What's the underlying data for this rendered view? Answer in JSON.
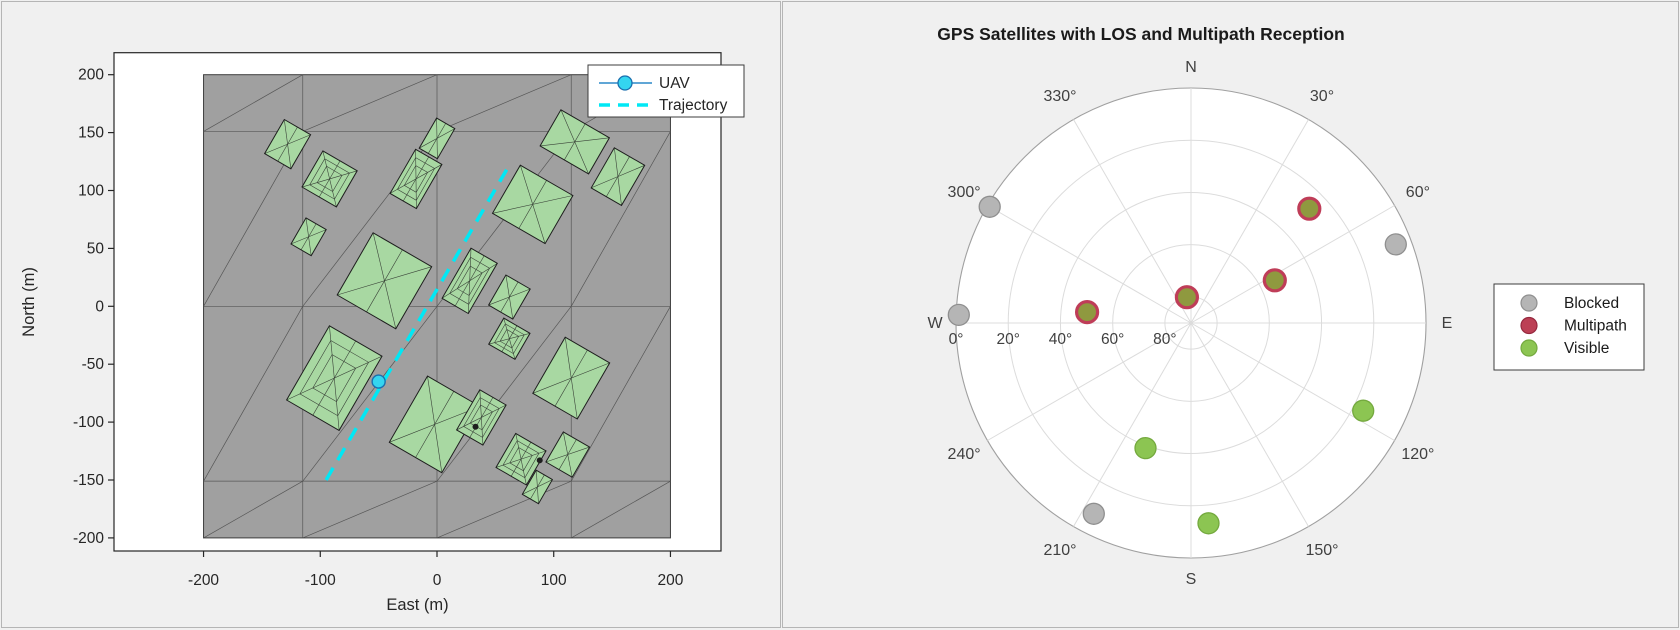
{
  "figure": {
    "background": "#f0f0f0",
    "panel_border": "#b5b5b5"
  },
  "chart_data": [
    {
      "type": "scatter",
      "name": "uav-city-map",
      "title": "",
      "xlabel": "East (m)",
      "ylabel": "North (m)",
      "xlim": [
        -277,
        243
      ],
      "ylim": [
        -211,
        219
      ],
      "xticks": [
        -200,
        -100,
        0,
        100,
        200
      ],
      "yticks": [
        -200,
        -150,
        -100,
        -50,
        0,
        50,
        100,
        150,
        200
      ],
      "grid": false,
      "axes_bg": "#ffffff",
      "axis_color": "#262626",
      "ground": {
        "east_range": [
          -200,
          200
        ],
        "north_range": [
          -200,
          200
        ],
        "fill": "#a0a0a0",
        "edge": "#3c3c3c"
      },
      "mesh": {
        "v_lines_east": [
          -115,
          0,
          115
        ],
        "h_lines_north": [
          -151,
          0,
          151
        ],
        "line_color": "#4a4a4a"
      },
      "building_style": {
        "fill": "#a8d8a2",
        "edge": "#1e1e1e"
      },
      "buildings": [
        {
          "cx": -128,
          "cy": 140,
          "w": 26,
          "h": 34,
          "inner": false
        },
        {
          "cx": -92,
          "cy": 110,
          "w": 34,
          "h": 36,
          "inner": true
        },
        {
          "cx": -110,
          "cy": 60,
          "w": 20,
          "h": 26,
          "inner": false
        },
        {
          "cx": -18,
          "cy": 110,
          "w": 26,
          "h": 44,
          "inner": true
        },
        {
          "cx": 0,
          "cy": 145,
          "w": 18,
          "h": 30,
          "inner": false
        },
        {
          "cx": 82,
          "cy": 88,
          "w": 52,
          "h": 48,
          "inner": false
        },
        {
          "cx": 118,
          "cy": 142,
          "w": 48,
          "h": 36,
          "inner": false
        },
        {
          "cx": 155,
          "cy": 112,
          "w": 30,
          "h": 40,
          "inner": false
        },
        {
          "cx": -45,
          "cy": 22,
          "w": 58,
          "h": 62,
          "inner": false
        },
        {
          "cx": 28,
          "cy": 22,
          "w": 26,
          "h": 50,
          "inner": true
        },
        {
          "cx": 62,
          "cy": 8,
          "w": 24,
          "h": 30,
          "inner": false
        },
        {
          "cx": 62,
          "cy": -28,
          "w": 26,
          "h": 26,
          "inner": true
        },
        {
          "cx": -88,
          "cy": -62,
          "w": 52,
          "h": 74,
          "inner": true
        },
        {
          "cx": -2,
          "cy": -102,
          "w": 52,
          "h": 66,
          "inner": false
        },
        {
          "cx": 38,
          "cy": -96,
          "w": 26,
          "h": 40,
          "inner": true
        },
        {
          "cx": 115,
          "cy": -62,
          "w": 44,
          "h": 56,
          "inner": false
        },
        {
          "cx": 72,
          "cy": -132,
          "w": 30,
          "h": 34,
          "inner": true
        },
        {
          "cx": 112,
          "cy": -128,
          "w": 26,
          "h": 30,
          "inner": false
        },
        {
          "cx": 86,
          "cy": -156,
          "w": 16,
          "h": 24,
          "inner": false
        }
      ],
      "dots": [
        [
          33,
          -104
        ],
        [
          88,
          -133
        ]
      ],
      "trajectory": {
        "east": [
          -95,
          62
        ],
        "north": [
          -150,
          122
        ],
        "color": "#00e8f5",
        "style": "dashed",
        "width": 3.5
      },
      "uav": {
        "east": -50,
        "north": -65,
        "marker_fill": "#34d5f0",
        "marker_edge": "#1a6fae",
        "line_color": "#0072bd"
      },
      "legend": {
        "position": "northeast",
        "entries": [
          {
            "label": "UAV",
            "marker": "circle-line",
            "color": "#34d5f0",
            "line_color": "#0072bd"
          },
          {
            "label": "Trajectory",
            "marker": "dashed-line",
            "color": "#00e8f5"
          }
        ]
      }
    },
    {
      "type": "skyplot",
      "name": "gps-skyplot",
      "title": "GPS Satellites with LOS and Multipath Reception",
      "compass_labels": [
        {
          "az": 0,
          "label": "N"
        },
        {
          "az": 30,
          "label": "30°"
        },
        {
          "az": 60,
          "label": "60°"
        },
        {
          "az": 90,
          "label": "E"
        },
        {
          "az": 120,
          "label": "120°"
        },
        {
          "az": 150,
          "label": "150°"
        },
        {
          "az": 180,
          "label": "S"
        },
        {
          "az": 210,
          "label": "210°"
        },
        {
          "az": 240,
          "label": "240°"
        },
        {
          "az": 270,
          "label": "W"
        },
        {
          "az": 300,
          "label": "300°"
        },
        {
          "az": 330,
          "label": "330°"
        }
      ],
      "elevation_ticks": [
        0,
        20,
        40,
        60,
        80
      ],
      "elevation_tick_suffix": "°",
      "grid_color": "#dcdcdc",
      "outer_circle_color": "#a0a0a0",
      "circle_fill": "#ffffff",
      "satellites": [
        {
          "az": 300,
          "el": 1,
          "status": "Blocked"
        },
        {
          "az": 272,
          "el": 1,
          "status": "Blocked"
        },
        {
          "az": 69,
          "el": 6,
          "status": "Blocked"
        },
        {
          "az": 207,
          "el": 8,
          "status": "Blocked"
        },
        {
          "az": 276,
          "el": 50,
          "status": "Multipath"
        },
        {
          "az": 351,
          "el": 80,
          "status": "Multipath"
        },
        {
          "az": 63,
          "el": 54,
          "status": "Multipath"
        },
        {
          "az": 46,
          "el": 27,
          "status": "Multipath"
        },
        {
          "az": 117,
          "el": 16,
          "status": "Visible"
        },
        {
          "az": 200,
          "el": 39,
          "status": "Visible"
        },
        {
          "az": 175,
          "el": 13,
          "status": "Visible"
        }
      ],
      "marker_styles": {
        "Blocked": {
          "fill": "#b5b5b5",
          "edge": "#8f8f8f",
          "edge_width": 1.3
        },
        "Multipath": {
          "fill": "#8f993f",
          "edge": "#bf3d58",
          "edge_width": 3.2
        },
        "Visible": {
          "fill": "#8cc552",
          "edge": "#74a93e",
          "edge_width": 1.3
        }
      },
      "legend": {
        "position": "east-outside",
        "entries": [
          {
            "label": "Blocked",
            "color": "#b5b5b5",
            "edge": "#8f8f8f"
          },
          {
            "label": "Multipath",
            "color": "#bc4055",
            "edge": "#96293f"
          },
          {
            "label": "Visible",
            "color": "#8cc552",
            "edge": "#74a93e"
          }
        ]
      }
    }
  ]
}
